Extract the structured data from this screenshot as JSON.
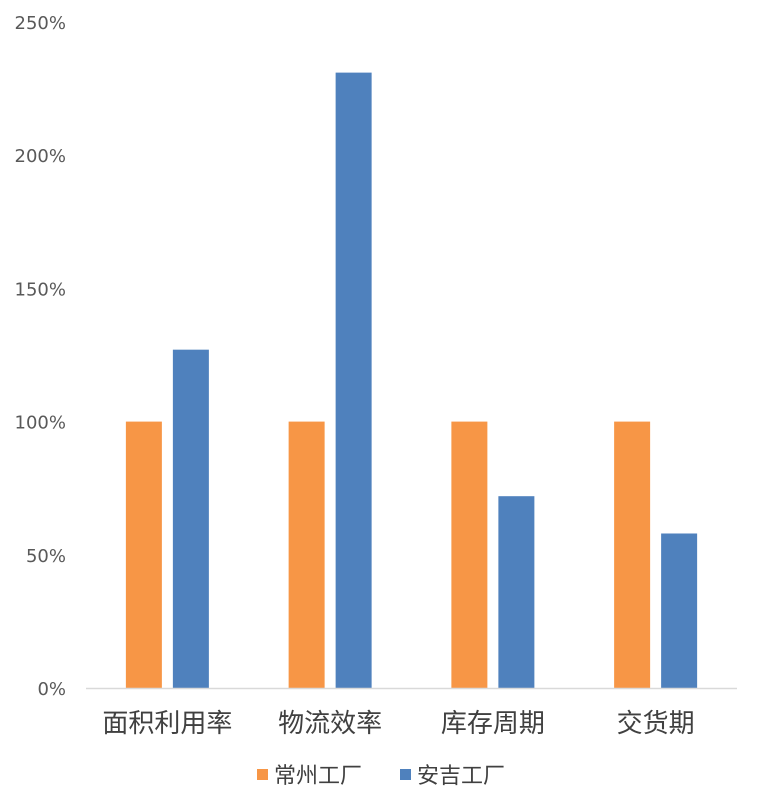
{
  "chart_data": {
    "type": "bar",
    "categories": [
      "面积利用率",
      "物流效率",
      "库存周期",
      "交货期"
    ],
    "series": [
      {
        "name": "常州工厂",
        "values": [
          100,
          100,
          100,
          100
        ],
        "color": "#F79646"
      },
      {
        "name": "安吉工厂",
        "values": [
          127,
          231,
          72,
          58
        ],
        "color": "#4F81BD"
      }
    ],
    "ylim": [
      0,
      250
    ],
    "y_ticks": [
      0,
      50,
      100,
      150,
      200,
      250
    ],
    "y_tick_labels": [
      "0%",
      "50%",
      "100%",
      "150%",
      "200%",
      "250%"
    ],
    "grid": false,
    "legend_position": "bottom",
    "axis_color": "#D9D9D9"
  }
}
